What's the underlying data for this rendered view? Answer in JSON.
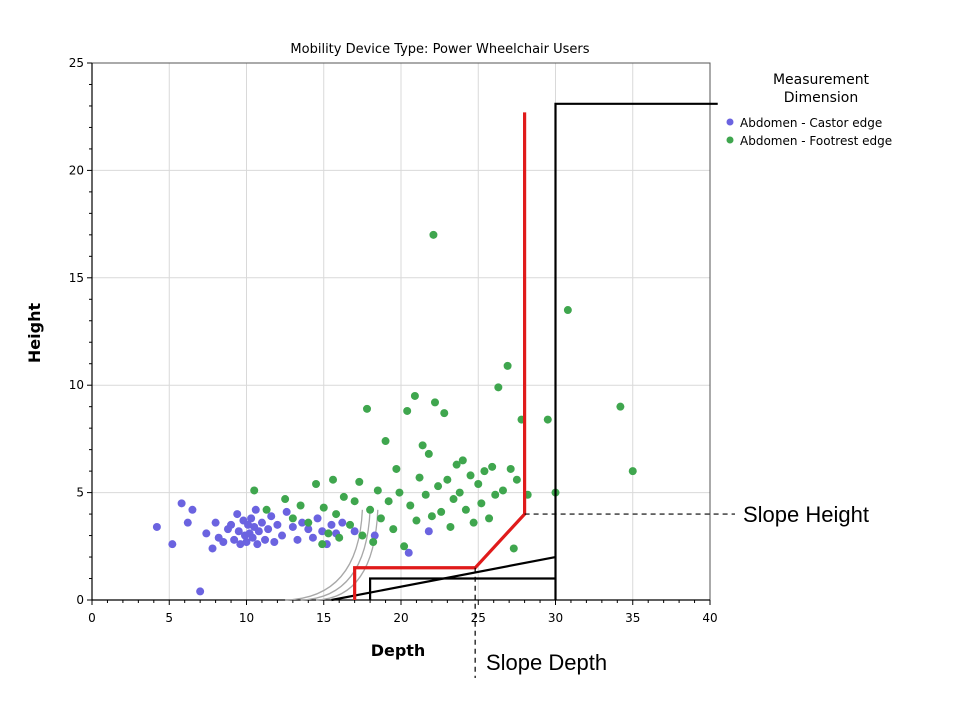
{
  "chart_data": {
    "type": "scatter",
    "title": "Mobility Device Type: Power Wheelchair Users",
    "xlabel": "Depth",
    "ylabel": "Height",
    "xlim": [
      0,
      40
    ],
    "ylim": [
      0,
      25
    ],
    "xticks": [
      0,
      5,
      10,
      15,
      20,
      25,
      30,
      35,
      40
    ],
    "yticks": [
      0,
      5,
      10,
      15,
      20,
      25
    ],
    "grid": true,
    "legend": {
      "title_line1": "Measurement",
      "title_line2": "Dimension",
      "placement": "right"
    },
    "series": [
      {
        "name": "Abdomen - Castor edge",
        "color": "#6b63e0",
        "points": [
          [
            4.2,
            3.4
          ],
          [
            5.2,
            2.6
          ],
          [
            5.8,
            4.5
          ],
          [
            6.2,
            3.6
          ],
          [
            6.5,
            4.2
          ],
          [
            7.0,
            0.4
          ],
          [
            7.4,
            3.1
          ],
          [
            7.8,
            2.4
          ],
          [
            8.0,
            3.6
          ],
          [
            8.2,
            2.9
          ],
          [
            8.5,
            2.7
          ],
          [
            8.8,
            3.3
          ],
          [
            9.0,
            3.5
          ],
          [
            9.2,
            2.8
          ],
          [
            9.4,
            4.0
          ],
          [
            9.5,
            3.2
          ],
          [
            9.6,
            2.6
          ],
          [
            9.8,
            3.7
          ],
          [
            9.9,
            3.0
          ],
          [
            10.0,
            2.7
          ],
          [
            10.1,
            3.5
          ],
          [
            10.2,
            3.1
          ],
          [
            10.3,
            3.8
          ],
          [
            10.4,
            2.9
          ],
          [
            10.5,
            3.4
          ],
          [
            10.6,
            4.2
          ],
          [
            10.7,
            2.6
          ],
          [
            10.8,
            3.2
          ],
          [
            11.0,
            3.6
          ],
          [
            11.2,
            2.8
          ],
          [
            11.4,
            3.3
          ],
          [
            11.6,
            3.9
          ],
          [
            11.8,
            2.7
          ],
          [
            12.0,
            3.5
          ],
          [
            12.3,
            3.0
          ],
          [
            12.6,
            4.1
          ],
          [
            13.0,
            3.4
          ],
          [
            13.3,
            2.8
          ],
          [
            13.6,
            3.6
          ],
          [
            14.0,
            3.3
          ],
          [
            14.3,
            2.9
          ],
          [
            14.6,
            3.8
          ],
          [
            14.9,
            3.2
          ],
          [
            15.2,
            2.6
          ],
          [
            15.5,
            3.5
          ],
          [
            15.8,
            3.1
          ],
          [
            16.2,
            3.6
          ],
          [
            17.0,
            3.2
          ],
          [
            18.3,
            3.0
          ],
          [
            20.5,
            2.2
          ],
          [
            21.8,
            3.2
          ]
        ]
      },
      {
        "name": "Abdomen - Footrest edge",
        "color": "#3fa64e",
        "points": [
          [
            10.5,
            5.1
          ],
          [
            11.3,
            4.2
          ],
          [
            12.5,
            4.7
          ],
          [
            13.0,
            3.8
          ],
          [
            13.5,
            4.4
          ],
          [
            14.0,
            3.6
          ],
          [
            14.5,
            5.4
          ],
          [
            14.9,
            2.6
          ],
          [
            15.0,
            4.3
          ],
          [
            15.3,
            3.1
          ],
          [
            15.6,
            5.6
          ],
          [
            15.8,
            4.0
          ],
          [
            16.0,
            2.9
          ],
          [
            16.3,
            4.8
          ],
          [
            16.7,
            3.5
          ],
          [
            17.0,
            4.6
          ],
          [
            17.3,
            5.5
          ],
          [
            17.5,
            3.0
          ],
          [
            17.8,
            8.9
          ],
          [
            18.0,
            4.2
          ],
          [
            18.2,
            2.7
          ],
          [
            18.5,
            5.1
          ],
          [
            18.7,
            3.8
          ],
          [
            19.0,
            7.4
          ],
          [
            19.2,
            4.6
          ],
          [
            19.5,
            3.3
          ],
          [
            19.7,
            6.1
          ],
          [
            19.9,
            5.0
          ],
          [
            20.2,
            2.5
          ],
          [
            20.4,
            8.8
          ],
          [
            20.6,
            4.4
          ],
          [
            20.9,
            9.5
          ],
          [
            21.0,
            3.7
          ],
          [
            21.2,
            5.7
          ],
          [
            21.4,
            7.2
          ],
          [
            21.6,
            4.9
          ],
          [
            21.8,
            6.8
          ],
          [
            22.0,
            3.9
          ],
          [
            22.1,
            17.0
          ],
          [
            22.2,
            9.2
          ],
          [
            22.4,
            5.3
          ],
          [
            22.6,
            4.1
          ],
          [
            22.8,
            8.7
          ],
          [
            23.0,
            5.6
          ],
          [
            23.2,
            3.4
          ],
          [
            23.4,
            4.7
          ],
          [
            23.6,
            6.3
          ],
          [
            23.8,
            5.0
          ],
          [
            24.0,
            6.5
          ],
          [
            24.2,
            4.2
          ],
          [
            24.5,
            5.8
          ],
          [
            24.7,
            3.6
          ],
          [
            25.0,
            5.4
          ],
          [
            25.2,
            4.5
          ],
          [
            25.4,
            6.0
          ],
          [
            25.7,
            3.8
          ],
          [
            25.9,
            6.2
          ],
          [
            26.1,
            4.9
          ],
          [
            26.3,
            9.9
          ],
          [
            26.6,
            5.1
          ],
          [
            26.9,
            10.9
          ],
          [
            27.1,
            6.1
          ],
          [
            27.3,
            2.4
          ],
          [
            27.5,
            5.6
          ],
          [
            27.8,
            8.4
          ],
          [
            28.2,
            4.9
          ],
          [
            29.5,
            8.4
          ],
          [
            30.0,
            5.0
          ],
          [
            30.8,
            13.5
          ],
          [
            34.2,
            9.0
          ],
          [
            35.0,
            6.0
          ]
        ]
      }
    ],
    "annotations": {
      "slope_height": "Slope Height",
      "slope_depth": "Slope Depth"
    }
  }
}
